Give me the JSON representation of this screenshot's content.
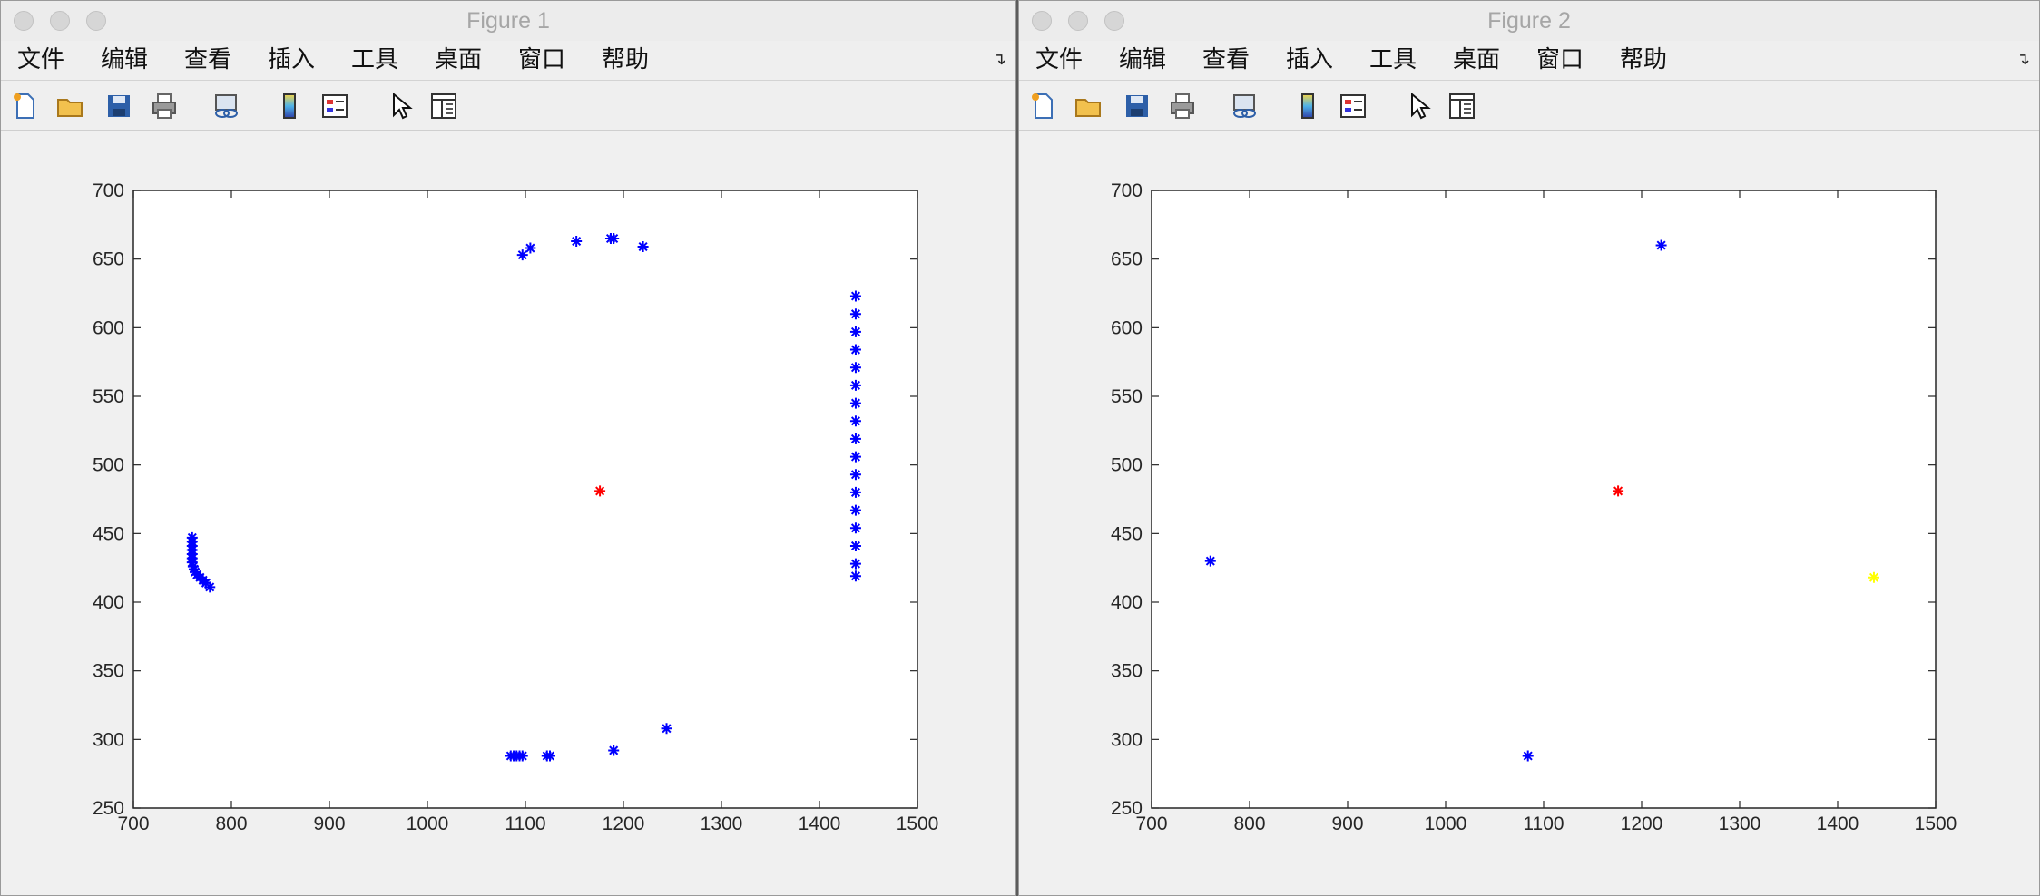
{
  "windows": [
    {
      "title": "Figure 1",
      "menu": [
        "文件",
        "编辑",
        "查看",
        "插入",
        "工具",
        "桌面",
        "窗口",
        "帮助"
      ],
      "toolbar_icons": [
        "new-figure-icon",
        "open-file-icon",
        "save-icon",
        "print-icon",
        "link-plot-icon",
        "insert-colorbar-icon",
        "insert-legend-icon",
        "edit-plot-icon",
        "property-inspector-icon"
      ]
    },
    {
      "title": "Figure 2",
      "menu": [
        "文件",
        "编辑",
        "查看",
        "插入",
        "工具",
        "桌面",
        "窗口",
        "帮助"
      ],
      "toolbar_icons": [
        "new-figure-icon",
        "open-file-icon",
        "save-icon",
        "print-icon",
        "link-plot-icon",
        "insert-colorbar-icon",
        "insert-legend-icon",
        "edit-plot-icon",
        "property-inspector-icon"
      ]
    }
  ],
  "chart_data": [
    {
      "type": "scatter",
      "marker": "*",
      "xlim": [
        700,
        1500
      ],
      "ylim": [
        250,
        700
      ],
      "xticks": [
        "700",
        "800",
        "900",
        "1000",
        "1100",
        "1200",
        "1300",
        "1400",
        "1500"
      ],
      "yticks": [
        "700",
        "650",
        "600",
        "550",
        "500",
        "450",
        "400",
        "350",
        "300",
        "250"
      ],
      "grid": false,
      "series": [
        {
          "color": "#0000ff",
          "points": [
            [
              760,
              447
            ],
            [
              760,
              444
            ],
            [
              760,
              441
            ],
            [
              760,
              438
            ],
            [
              760,
              435
            ],
            [
              760,
              432
            ],
            [
              760,
              429
            ],
            [
              761,
              426
            ],
            [
              762,
              424
            ],
            [
              763,
              422
            ],
            [
              765,
              420
            ],
            [
              768,
              418
            ],
            [
              771,
              416
            ],
            [
              774,
              414
            ],
            [
              778,
              411
            ],
            [
              1097,
              653
            ],
            [
              1105,
              658
            ],
            [
              1152,
              663
            ],
            [
              1187,
              665
            ],
            [
              1190,
              665
            ],
            [
              1220,
              659
            ],
            [
              1085,
              288
            ],
            [
              1088,
              288
            ],
            [
              1091,
              288
            ],
            [
              1094,
              288
            ],
            [
              1097,
              288
            ],
            [
              1122,
              288
            ],
            [
              1125,
              288
            ],
            [
              1190,
              292
            ],
            [
              1244,
              308
            ],
            [
              1437,
              623
            ],
            [
              1437,
              610
            ],
            [
              1437,
              597
            ],
            [
              1437,
              584
            ],
            [
              1437,
              571
            ],
            [
              1437,
              558
            ],
            [
              1437,
              545
            ],
            [
              1437,
              532
            ],
            [
              1437,
              519
            ],
            [
              1437,
              506
            ],
            [
              1437,
              493
            ],
            [
              1437,
              480
            ],
            [
              1437,
              467
            ],
            [
              1437,
              454
            ],
            [
              1437,
              441
            ],
            [
              1437,
              428
            ],
            [
              1437,
              419
            ]
          ]
        },
        {
          "color": "#ff0000",
          "points": [
            [
              1176,
              481
            ]
          ]
        }
      ]
    },
    {
      "type": "scatter",
      "marker": "*",
      "xlim": [
        700,
        1500
      ],
      "ylim": [
        250,
        700
      ],
      "xticks": [
        "700",
        "800",
        "900",
        "1000",
        "1100",
        "1200",
        "1300",
        "1400",
        "1500"
      ],
      "yticks": [
        "700",
        "650",
        "600",
        "550",
        "500",
        "450",
        "400",
        "350",
        "300",
        "250"
      ],
      "grid": false,
      "series": [
        {
          "color": "#0000ff",
          "points": [
            [
              760,
              430
            ],
            [
              1220,
              660
            ],
            [
              1084,
              288
            ]
          ]
        },
        {
          "color": "#ff0000",
          "points": [
            [
              1176,
              481
            ]
          ]
        },
        {
          "color": "#ffff00",
          "points": [
            [
              1437,
              418
            ]
          ]
        }
      ]
    }
  ]
}
